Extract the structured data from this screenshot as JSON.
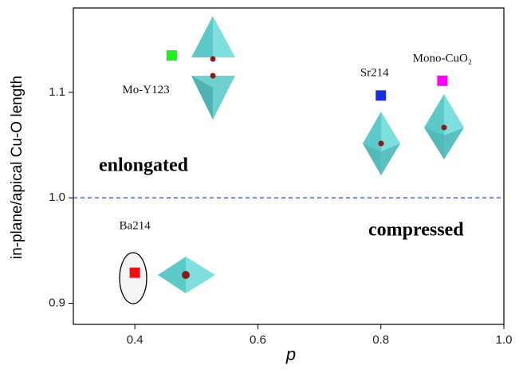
{
  "chart_data": {
    "type": "scatter",
    "x_label": "p",
    "y_label": "in-plane/apical Cu-O length",
    "xlim": [
      0.3,
      1.0
    ],
    "xticks": [
      0.4,
      0.6,
      0.8,
      {
        "value": 1.0,
        "label": "1.0"
      }
    ],
    "ylim": [
      0.88,
      1.18
    ],
    "yticks": [
      0.9,
      {
        "value": 1.0,
        "label": "1.0"
      },
      1.1
    ],
    "reference_line": {
      "y": 1.0,
      "color": "#3355cc"
    },
    "annotations": [
      "enlongated",
      "compressed"
    ],
    "series": [
      {
        "name": "Mo-Y123",
        "color": "#22ee22",
        "x": [
          0.46
        ],
        "values": [
          1.135
        ]
      },
      {
        "name": "Sr214",
        "color": "#1a2fd9",
        "x": [
          0.8
        ],
        "values": [
          1.097
        ]
      },
      {
        "name": "Mono-CuO₂",
        "color": "#ff00ff",
        "x": [
          0.9
        ],
        "values": [
          1.111
        ]
      },
      {
        "name": "Ba214",
        "color": "#ee1111",
        "x": [
          0.4
        ],
        "values": [
          0.929
        ]
      }
    ]
  }
}
